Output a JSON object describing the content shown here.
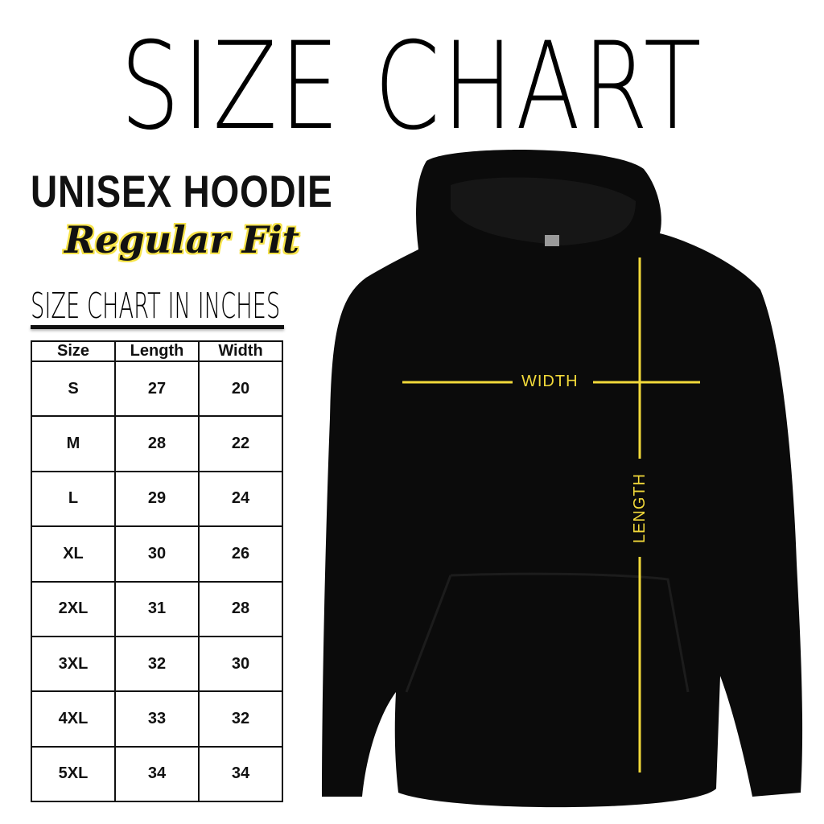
{
  "title": "SIZE CHART",
  "product": "UNISEX HOODIE",
  "fit": "Regular Fit",
  "subtitle": "SIZE CHART IN INCHES",
  "table": {
    "headers": [
      "Size",
      "Length",
      "Width"
    ],
    "rows": [
      [
        "S",
        "27",
        "20"
      ],
      [
        "M",
        "28",
        "22"
      ],
      [
        "L",
        "29",
        "24"
      ],
      [
        "XL",
        "30",
        "26"
      ],
      [
        "2XL",
        "31",
        "28"
      ],
      [
        "3XL",
        "32",
        "30"
      ],
      [
        "4XL",
        "33",
        "32"
      ],
      [
        "5XL",
        "34",
        "34"
      ]
    ]
  },
  "measure_labels": {
    "width": "WIDTH",
    "length": "LENGTH"
  },
  "colors": {
    "hoodie": "#0b0b0b",
    "measure_lines": "#f2d93a",
    "highlight": "#f6e34a"
  }
}
